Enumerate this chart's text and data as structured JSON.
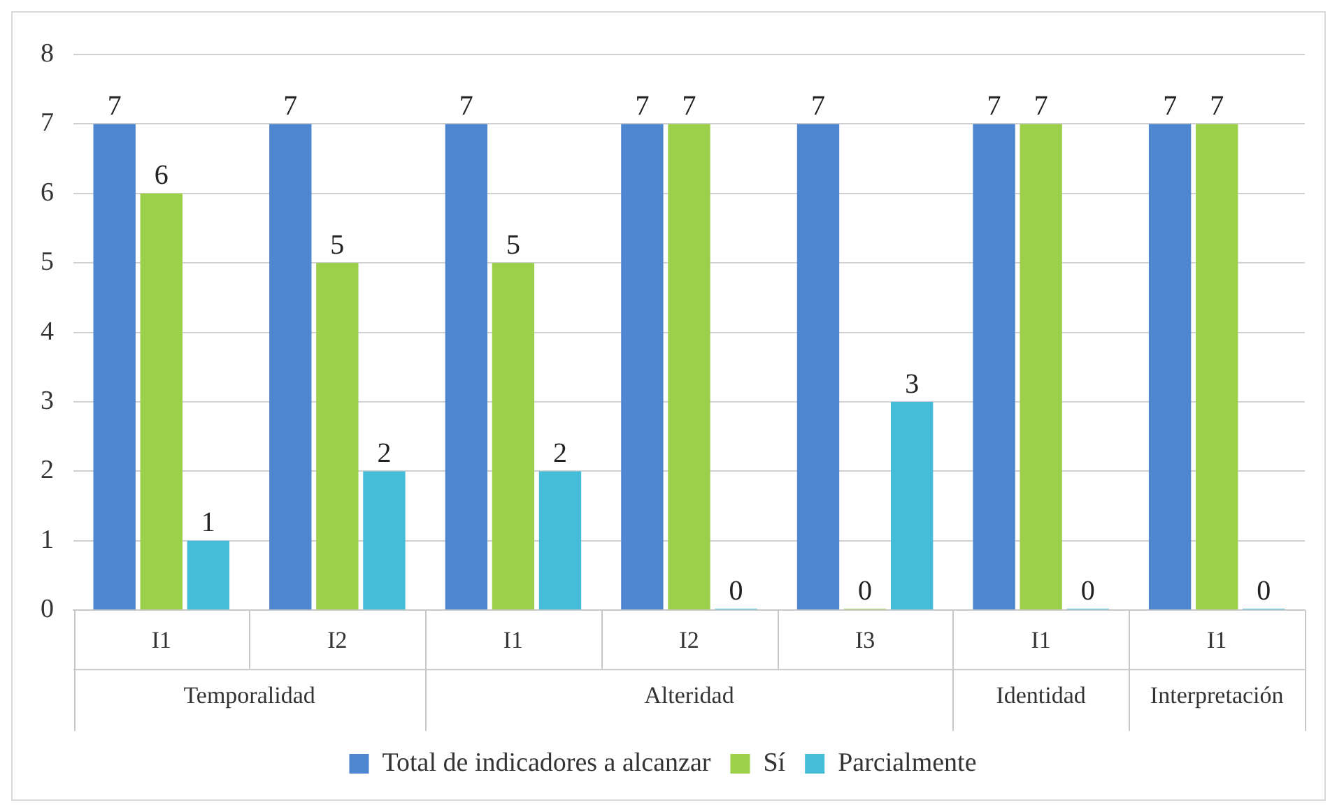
{
  "chart_data": {
    "type": "bar",
    "categories": [
      "I1",
      "I2",
      "I1",
      "I2",
      "I3",
      "I1",
      "I1"
    ],
    "series": [
      {
        "name": "Total de indicadores a alcanzar",
        "color": "#4f86d0",
        "values": [
          7,
          7,
          7,
          7,
          7,
          7,
          7
        ]
      },
      {
        "name": "Sí",
        "color": "#9ccf4a",
        "values": [
          6,
          5,
          5,
          7,
          0,
          7,
          7
        ]
      },
      {
        "name": "Parcialmente",
        "color": "#45bcd8",
        "values": [
          1,
          2,
          2,
          0,
          3,
          0,
          0
        ]
      }
    ],
    "ylim": [
      0,
      8
    ],
    "yticks": [
      0,
      1,
      2,
      3,
      4,
      5,
      6,
      7,
      8
    ],
    "grid": "y",
    "legend": "bottom",
    "data_labels": true,
    "annotations": [
      "Temporalidad",
      "Alteridad",
      "Identidad",
      "Interpretación"
    ]
  }
}
